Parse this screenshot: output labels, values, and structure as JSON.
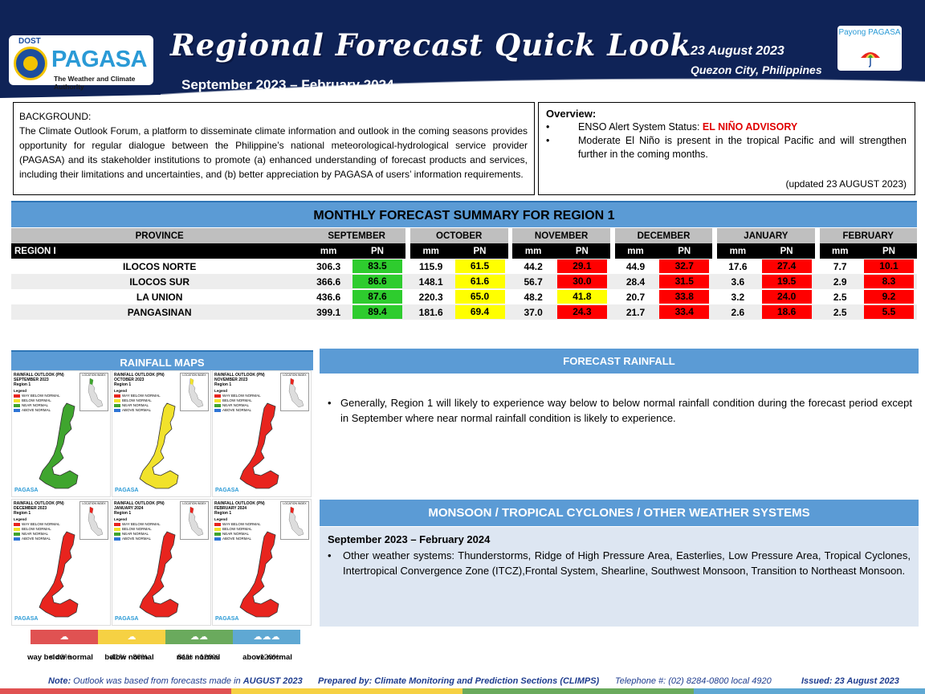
{
  "header": {
    "logo_agency": "DOST",
    "logo_name": "PAGASA",
    "logo_tagline": "The Weather and Climate Authority",
    "title": "Regional Forecast Quick Look",
    "period": "September 2023 – February 2024",
    "date": "23 August 2023",
    "location": "Quezon City, Philippines",
    "payong_logo": "Payong PAGASA",
    "colors": {
      "header_bg": "#0f2357",
      "accent_blue": "#5b9bd5"
    }
  },
  "background": {
    "title": "BACKGROUND:",
    "text": "The Climate Outlook Forum, a platform to disseminate climate information and outlook in the coming seasons provides opportunity for regular dialogue between the Philippine’s national meteorological-hydrological service provider (PAGASA) and its stakeholder institutions to promote (a) enhanced understanding of forecast products and services, including their limitations and uncertainties, and (b) better appreciation by PAGASA of users’ information requirements."
  },
  "overview": {
    "title": "Overview:",
    "enso_label": "ENSO Alert System Status: ",
    "enso_status": "EL NIÑO ADVISORY",
    "item2": "Moderate El Niño is present in the tropical Pacific and will strengthen further in the coming months.",
    "updated": "(updated 23 AUGUST 2023)"
  },
  "forecast_table": {
    "title": "MONTHLY FORECAST SUMMARY FOR REGION 1",
    "province_header": "PROVINCE",
    "months": [
      "SEPTEMBER",
      "OCTOBER",
      "NOVEMBER",
      "DECEMBER",
      "JANUARY",
      "FEBRUARY"
    ],
    "sub_mm": "mm",
    "sub_pn": "PN",
    "region_label": "REGION I",
    "colors": {
      "green": "#2ecc2e",
      "yellow": "#ffff00",
      "red": "#ff0000"
    },
    "rows": [
      {
        "province": "ILOCOS NORTE",
        "cells": [
          {
            "mm": "306.3",
            "pn": "83.5",
            "cat": "green"
          },
          {
            "mm": "115.9",
            "pn": "61.5",
            "cat": "yellow"
          },
          {
            "mm": "44.2",
            "pn": "29.1",
            "cat": "red"
          },
          {
            "mm": "44.9",
            "pn": "32.7",
            "cat": "red"
          },
          {
            "mm": "17.6",
            "pn": "27.4",
            "cat": "red"
          },
          {
            "mm": "7.7",
            "pn": "10.1",
            "cat": "red"
          }
        ]
      },
      {
        "province": "ILOCOS SUR",
        "cells": [
          {
            "mm": "366.6",
            "pn": "86.6",
            "cat": "green"
          },
          {
            "mm": "148.1",
            "pn": "61.6",
            "cat": "yellow"
          },
          {
            "mm": "56.7",
            "pn": "30.0",
            "cat": "red"
          },
          {
            "mm": "28.4",
            "pn": "31.5",
            "cat": "red"
          },
          {
            "mm": "3.6",
            "pn": "19.5",
            "cat": "red"
          },
          {
            "mm": "2.9",
            "pn": "8.3",
            "cat": "red"
          }
        ]
      },
      {
        "province": "LA UNION",
        "cells": [
          {
            "mm": "436.6",
            "pn": "87.6",
            "cat": "green"
          },
          {
            "mm": "220.3",
            "pn": "65.0",
            "cat": "yellow"
          },
          {
            "mm": "48.2",
            "pn": "41.8",
            "cat": "yellow"
          },
          {
            "mm": "20.7",
            "pn": "33.8",
            "cat": "red"
          },
          {
            "mm": "3.2",
            "pn": "24.0",
            "cat": "red"
          },
          {
            "mm": "2.5",
            "pn": "9.2",
            "cat": "red"
          }
        ]
      },
      {
        "province": "PANGASINAN",
        "cells": [
          {
            "mm": "399.1",
            "pn": "89.4",
            "cat": "green"
          },
          {
            "mm": "181.6",
            "pn": "69.4",
            "cat": "yellow"
          },
          {
            "mm": "37.0",
            "pn": "24.3",
            "cat": "red"
          },
          {
            "mm": "21.7",
            "pn": "33.4",
            "cat": "red"
          },
          {
            "mm": "2.6",
            "pn": "18.6",
            "cat": "red"
          },
          {
            "mm": "2.5",
            "pn": "5.5",
            "cat": "red"
          }
        ]
      }
    ]
  },
  "rainfall_maps": {
    "title": "RAINFALL MAPS",
    "maps": [
      {
        "title": "RAINFALL OUTLOOK (PN)",
        "month": "SEPTEMBER 2023",
        "region": "Region 1",
        "color": "#3fa52e"
      },
      {
        "title": "RAINFALL OUTLOOK (PN)",
        "month": "OCTOBER 2023",
        "region": "Region 1",
        "color": "#f1e22b"
      },
      {
        "title": "RAINFALL OUTLOOK (PN)",
        "month": "NOVEMBER 2023",
        "region": "Region 1",
        "color": "#e8241e"
      },
      {
        "title": "RAINFALL OUTLOOK (PN)",
        "month": "DECEMBER 2023",
        "region": "Region 1",
        "color": "#e8241e"
      },
      {
        "title": "RAINFALL OUTLOOK (PN)",
        "month": "JANUARY 2024",
        "region": "Region 1",
        "color": "#e8241e"
      },
      {
        "title": "RAINFALL OUTLOOK (PN)",
        "month": "FEBRUARY 2024",
        "region": "Region 1",
        "color": "#e8241e"
      }
    ],
    "legend_title": "Legend",
    "legend_items": [
      "WAY BELOW NORMAL",
      "BELOW NORMAL",
      "NEAR NORMAL",
      "ABOVE NORMAL"
    ],
    "location_label": "LOCATION INDEX",
    "map_logo": "PAGASA"
  },
  "categories": [
    {
      "label": "way below normal",
      "range": "< 40%",
      "color": "#e05252"
    },
    {
      "label": "below normal",
      "range": "41% -  80%",
      "color": "#f6d143"
    },
    {
      "label": "near normal",
      "range": "81% - 120%",
      "color": "#6aaa5d"
    },
    {
      "label": "above normal",
      "range": ">120%",
      "color": "#5fa8d3"
    }
  ],
  "forecast_rainfall": {
    "title": "FORECAST RAINFALL",
    "text": "Generally, Region 1 will likely to experience way below to below normal rainfall condition during the forecast period except in September where near normal rainfall condition is likely to experience."
  },
  "monsoon": {
    "title": "MONSOON / TROPICAL CYCLONES / OTHER WEATHER SYSTEMS",
    "period": "September 2023 – February 2024",
    "text": "Other weather systems: Thunderstorms,  Ridge of High Pressure Area,  Easterlies, Low Pressure Area, Tropical Cyclones, Intertropical Convergence Zone (ITCZ),Frontal System, Shearline, Southwest Monsoon, Transition to Northeast Monsoon."
  },
  "footer": {
    "note_label": "Note:",
    "note_text": " Outlook was based from forecasts made in ",
    "note_month": "AUGUST 2023",
    "prepared": "Prepared by: Climate Monitoring and Prediction Sections (CLIMPS)",
    "telephone": "Telephone #: (02) 8284-0800 local 4920",
    "issued": "Issued: 23 August 2023"
  }
}
